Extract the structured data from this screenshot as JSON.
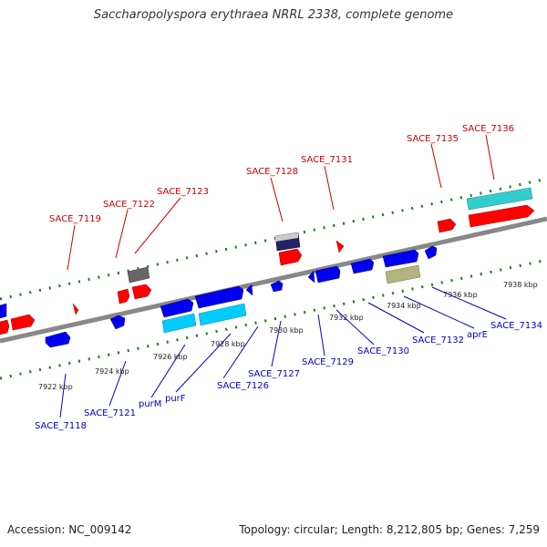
{
  "title": "Saccharopolyspora erythraea NRRL 2338, complete genome",
  "footer": {
    "accession": "Accession: NC_009142",
    "topology": "Topology: circular; Length: 8,212,805 bp; Genes: 7,259"
  },
  "colors": {
    "forward_gene": "#ff0000",
    "reverse_gene": "#0000ff",
    "forward_label": "#cc0000",
    "reverse_label": "#0000cc",
    "cds_light": "#00ccff",
    "cds_cyan": "#33cccc",
    "misc_grey": "#666666",
    "misc_olive": "#b3b380",
    "backbone": "#888888",
    "tick": "#227722"
  },
  "ticks": [
    "7922 kbp",
    "7924 kbp",
    "7926 kbp",
    "7928 kbp",
    "7930 kbp",
    "7932 kbp",
    "7934 kbp",
    "7936 kbp",
    "7938 kbp"
  ],
  "forward_labels": [
    "SACE_7119",
    "SACE_7122",
    "SACE_7123",
    "SACE_7128",
    "SACE_7131",
    "SACE_7135",
    "SACE_7136"
  ],
  "reverse_labels": [
    "SACE_7118",
    "SACE_7121",
    "purM",
    "purF",
    "SACE_7126",
    "SACE_7127",
    "SACE_7129",
    "SACE_7130",
    "SACE_7132",
    "aprE",
    "SACE_7134"
  ]
}
